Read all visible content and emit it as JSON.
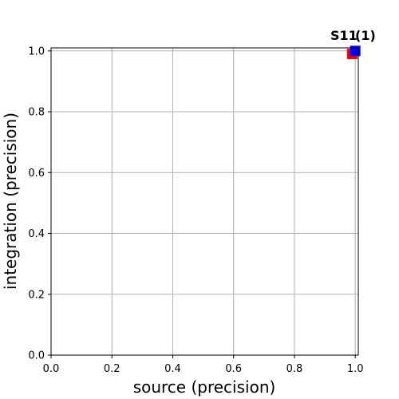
{
  "chart_data": {
    "type": "scatter",
    "xlabel": "source (precision)",
    "ylabel": "integration (precision)",
    "xlim": [
      0.0,
      1.01
    ],
    "ylim": [
      0.0,
      1.01
    ],
    "x_ticks": [
      "0.0",
      "0.2",
      "0.4",
      "0.6",
      "0.8",
      "1.0"
    ],
    "y_ticks": [
      "0.0",
      "0.2",
      "0.4",
      "0.6",
      "0.8",
      "1.0"
    ],
    "grid": true,
    "points": [
      {
        "x": 0.99,
        "y": 0.99,
        "color": "#ff0000",
        "marker": "square"
      },
      {
        "x": 1.0,
        "y": 1.0,
        "color": "#0000ff",
        "marker": "square"
      }
    ],
    "point_labels": [
      "S11",
      "(1)"
    ]
  }
}
